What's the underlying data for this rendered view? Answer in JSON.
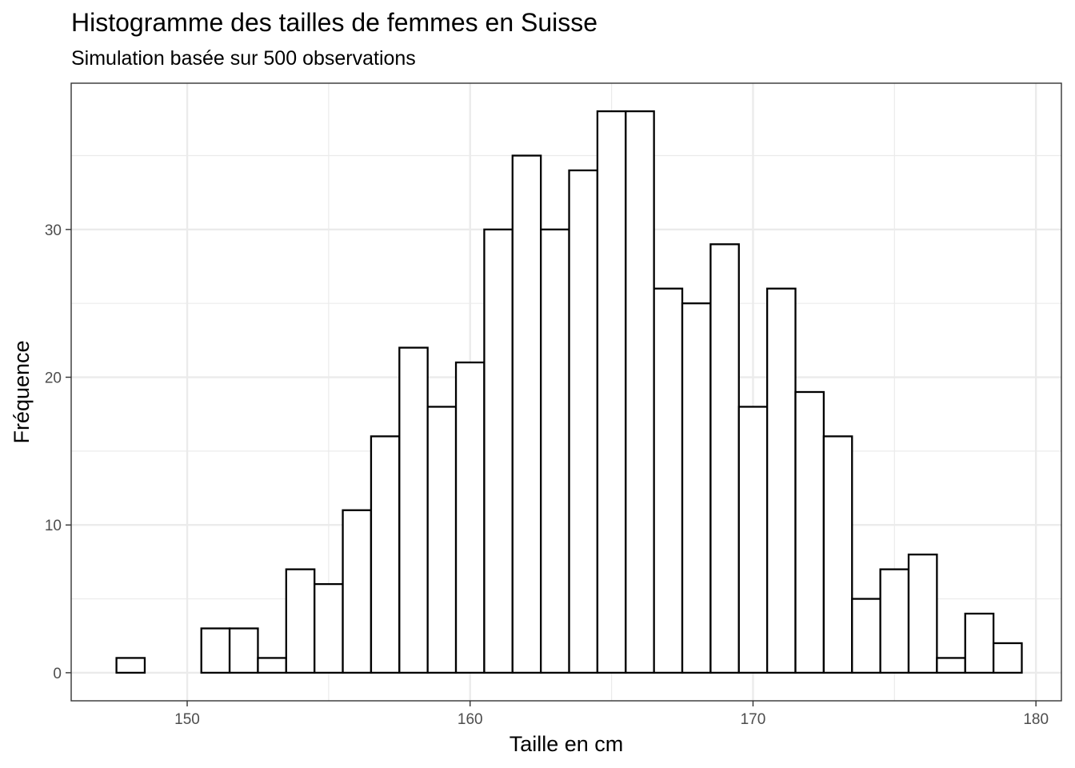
{
  "chart_data": {
    "type": "bar",
    "title": "Histogramme des tailles de femmes en Suisse",
    "subtitle": "Simulation basée sur 500 observations",
    "xlabel": "Taille en cm",
    "ylabel": "Fréquence",
    "xlim": [
      145.9,
      180.9
    ],
    "ylim": [
      -1.9,
      39.9
    ],
    "x_ticks": [
      150,
      160,
      170,
      180
    ],
    "y_ticks": [
      0,
      10,
      20,
      30
    ],
    "x_tick_labels": [
      "150",
      "160",
      "170",
      "180"
    ],
    "y_tick_labels": [
      "0",
      "10",
      "20",
      "30"
    ],
    "bin_width": 1,
    "bin_centers": [
      148,
      149,
      150,
      151,
      152,
      153,
      154,
      155,
      156,
      157,
      158,
      159,
      160,
      161,
      162,
      163,
      164,
      165,
      166,
      167,
      168,
      169,
      170,
      171,
      172,
      173,
      174,
      175,
      176,
      177,
      178,
      179
    ],
    "values": [
      1,
      0,
      0,
      3,
      3,
      1,
      7,
      6,
      11,
      16,
      22,
      18,
      21,
      30,
      35,
      30,
      34,
      38,
      38,
      26,
      25,
      29,
      18,
      26,
      19,
      16,
      5,
      7,
      8,
      1,
      4,
      2
    ],
    "grid": true,
    "bar_fill": "#ffffff",
    "bar_stroke": "#000000",
    "grid_color": "#ebebeb",
    "panel_border": "#333333"
  }
}
